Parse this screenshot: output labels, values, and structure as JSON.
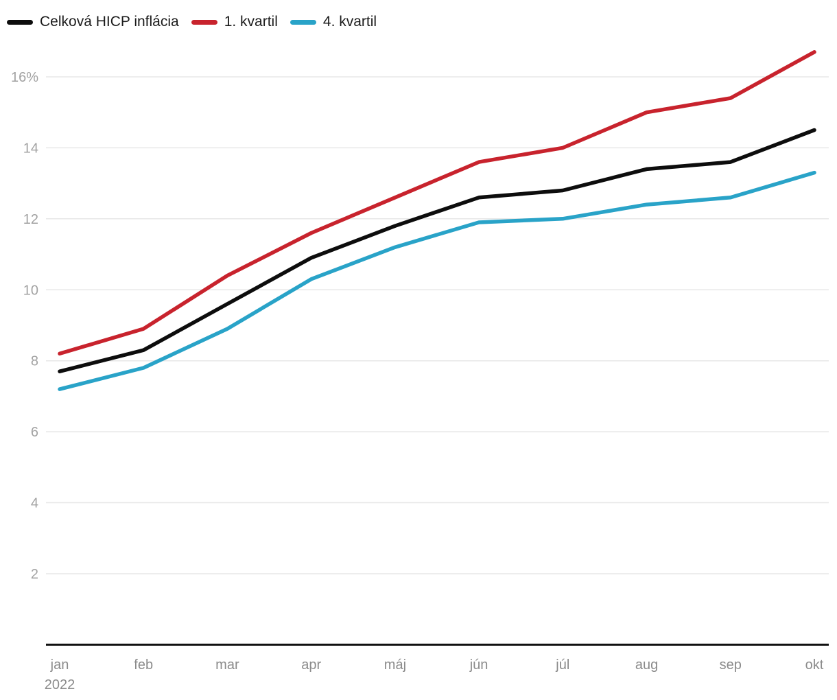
{
  "legend": {
    "items": [
      {
        "label": "Celková HICP inflácia",
        "color": "#0d0d0d",
        "icon": "line-swatch-icon"
      },
      {
        "label": "1. kvartil",
        "color": "#c8232d",
        "icon": "line-swatch-icon"
      },
      {
        "label": "4. kvartil",
        "color": "#29a3c8",
        "icon": "line-swatch-icon"
      }
    ]
  },
  "chart_data": {
    "type": "line",
    "x": [
      "jan",
      "feb",
      "mar",
      "apr",
      "máj",
      "jún",
      "júl",
      "aug",
      "sep",
      "okt"
    ],
    "x_sublabel": {
      "index": 0,
      "label": "2022"
    },
    "series": [
      {
        "name": "Celková HICP inflácia",
        "color": "#0d0d0d",
        "values": [
          7.7,
          8.3,
          9.6,
          10.9,
          11.8,
          12.6,
          12.8,
          13.4,
          13.6,
          14.5
        ]
      },
      {
        "name": "1. kvartil",
        "color": "#c8232d",
        "values": [
          8.2,
          8.9,
          10.4,
          11.6,
          12.6,
          13.6,
          14.0,
          15.0,
          15.4,
          16.7
        ]
      },
      {
        "name": "4. kvartil",
        "color": "#29a3c8",
        "values": [
          7.2,
          7.8,
          8.9,
          10.3,
          11.2,
          11.9,
          12.0,
          12.4,
          12.6,
          13.3
        ]
      }
    ],
    "y_ticks": [
      2,
      4,
      6,
      8,
      10,
      12,
      14,
      16
    ],
    "y_tick_labels": [
      "2",
      "4",
      "6",
      "8",
      "10",
      "12",
      "14",
      "16%"
    ],
    "ylim": [
      0,
      17.4
    ],
    "grid": true,
    "legend_position": "top-left",
    "title": "",
    "xlabel": "",
    "ylabel": ""
  },
  "colors": {
    "background": "#ffffff",
    "grid": "#e7e7e7",
    "axis": "#111111",
    "y_tick_text": "#a2a2a2",
    "x_tick_text": "#8b8b8b",
    "legend_text": "#1c1c1c"
  }
}
